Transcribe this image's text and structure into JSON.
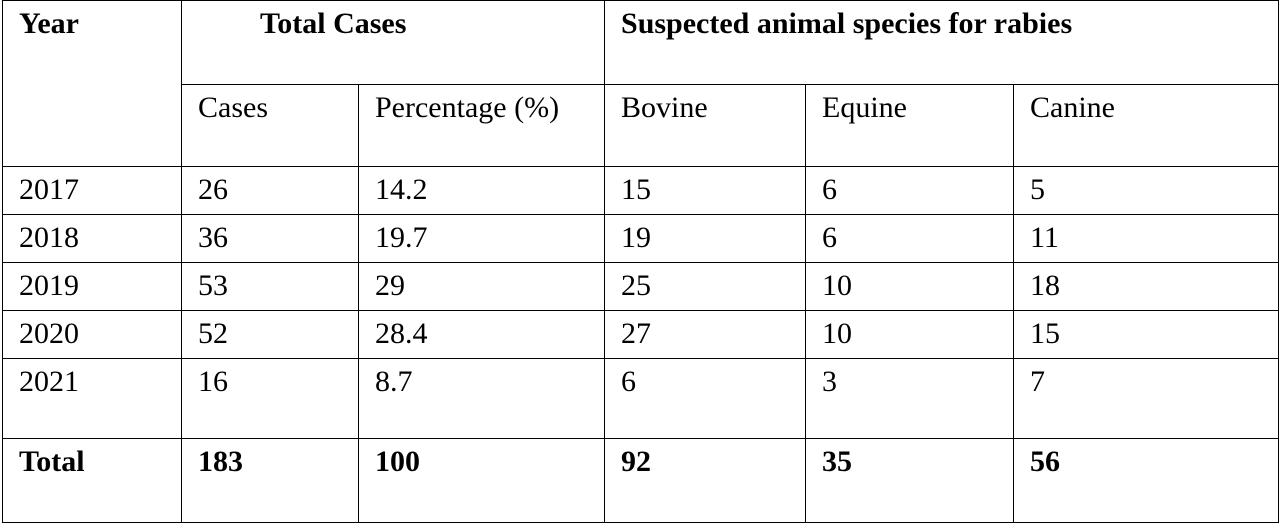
{
  "table": {
    "headers": {
      "year": "Year",
      "total_cases": "Total Cases",
      "species_group": "Suspected animal species for rabies",
      "cases": "Cases",
      "percentage": "Percentage (%)",
      "bovine": "Bovine",
      "equine": "Equine",
      "canine": "Canine"
    },
    "rows": [
      {
        "year": "2017",
        "cases": "26",
        "percentage": "14.2",
        "bovine": "15",
        "equine": "6",
        "canine": "5"
      },
      {
        "year": "2018",
        "cases": "36",
        "percentage": "19.7",
        "bovine": "19",
        "equine": "6",
        "canine": "11"
      },
      {
        "year": "2019",
        "cases": "53",
        "percentage": "29",
        "bovine": "25",
        "equine": "10",
        "canine": "18"
      },
      {
        "year": "2020",
        "cases": "52",
        "percentage": "28.4",
        "bovine": "27",
        "equine": "10",
        "canine": "15"
      },
      {
        "year": "2021",
        "cases": "16",
        "percentage": "8.7",
        "bovine": "6",
        "equine": "3",
        "canine": "7"
      }
    ],
    "total": {
      "label": "Total",
      "cases": "183",
      "percentage": "100",
      "bovine": "92",
      "equine": "35",
      "canine": "56"
    }
  }
}
